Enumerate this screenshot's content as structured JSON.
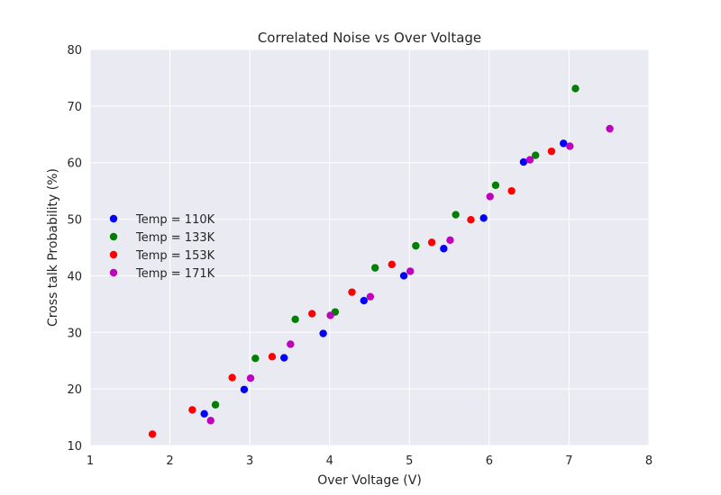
{
  "chart_data": {
    "type": "scatter",
    "title": "Correlated Noise vs Over Voltage",
    "xlabel": "Over Voltage (V)",
    "ylabel": "Cross talk Probability (%)",
    "xlim": [
      1,
      8
    ],
    "ylim": [
      10,
      80
    ],
    "xticks": [
      1,
      2,
      3,
      4,
      5,
      6,
      7,
      8
    ],
    "yticks": [
      10,
      20,
      30,
      40,
      50,
      60,
      70,
      80
    ],
    "grid": true,
    "legend_position": "center-left",
    "series": [
      {
        "name": "Temp = 110K",
        "color": "#0000ff",
        "points": [
          [
            2.43,
            15.6
          ],
          [
            2.93,
            19.9
          ],
          [
            3.43,
            25.5
          ],
          [
            3.92,
            29.8
          ],
          [
            4.43,
            35.6
          ],
          [
            4.93,
            40.0
          ],
          [
            5.43,
            44.8
          ],
          [
            5.93,
            50.2
          ],
          [
            6.43,
            60.1
          ],
          [
            6.93,
            63.4
          ]
        ]
      },
      {
        "name": "Temp = 133K",
        "color": "#008000",
        "points": [
          [
            2.57,
            17.2
          ],
          [
            3.07,
            25.4
          ],
          [
            3.57,
            32.3
          ],
          [
            4.07,
            33.6
          ],
          [
            4.57,
            41.4
          ],
          [
            5.08,
            45.3
          ],
          [
            5.58,
            50.8
          ],
          [
            6.08,
            56.0
          ],
          [
            6.58,
            61.3
          ],
          [
            7.08,
            73.1
          ]
        ]
      },
      {
        "name": "Temp = 153K",
        "color": "#ff0000",
        "points": [
          [
            1.78,
            12.0
          ],
          [
            2.28,
            16.3
          ],
          [
            2.78,
            22.0
          ],
          [
            3.28,
            25.7
          ],
          [
            3.78,
            33.3
          ],
          [
            4.28,
            37.1
          ],
          [
            4.78,
            42.0
          ],
          [
            5.28,
            45.9
          ],
          [
            5.77,
            49.9
          ],
          [
            6.28,
            55.0
          ],
          [
            6.78,
            62.0
          ]
        ]
      },
      {
        "name": "Temp = 171K",
        "color": "#bf00bf",
        "points": [
          [
            2.51,
            14.4
          ],
          [
            3.01,
            21.9
          ],
          [
            3.51,
            27.9
          ],
          [
            4.01,
            33.0
          ],
          [
            4.51,
            36.3
          ],
          [
            5.01,
            40.8
          ],
          [
            5.51,
            46.3
          ],
          [
            6.01,
            54.0
          ],
          [
            6.51,
            60.5
          ],
          [
            7.01,
            62.9
          ],
          [
            7.51,
            66.0
          ]
        ]
      }
    ]
  }
}
